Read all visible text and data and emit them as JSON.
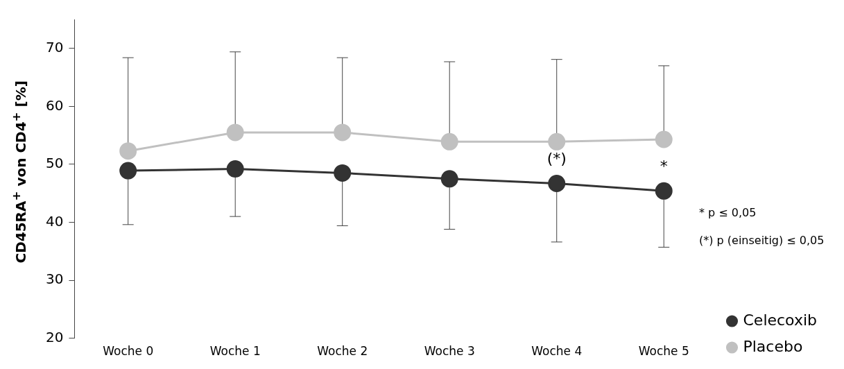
{
  "chart_data": {
    "type": "line",
    "ylabel": "CD45RA$^{+}$ von CD4$^{+}$ [%]",
    "categories": [
      "Woche 0",
      "Woche 1",
      "Woche 2",
      "Woche 3",
      "Woche 4",
      "Woche 5"
    ],
    "series": [
      {
        "name": "Celecoxib",
        "color": "#333333",
        "values": [
          48.9,
          49.2,
          48.5,
          47.5,
          46.7,
          45.4
        ],
        "errors": [
          [
            39.6,
            48.9
          ],
          [
            41,
            49.2
          ],
          [
            39.4,
            48.5
          ],
          [
            38.8,
            47.5
          ],
          [
            36.6,
            46.7
          ],
          [
            35.7,
            45.4
          ]
        ]
      },
      {
        "name": "Placebo",
        "color": "#c0c0c0",
        "values": [
          52.3,
          55.5,
          55.5,
          53.9,
          53.9,
          54.3
        ],
        "errors": [
          [
            52.3,
            68.4
          ],
          [
            55.5,
            69.4
          ],
          [
            55.5,
            68.4
          ],
          [
            53.9,
            67.7
          ],
          [
            53.9,
            68.1
          ],
          [
            54.3,
            67
          ]
        ]
      }
    ],
    "ylim": [
      20,
      75
    ],
    "yticks": [
      20,
      30,
      40,
      50,
      60,
      70
    ],
    "grid": false,
    "legend": "bottom right",
    "marker": "circle",
    "line_style": "solid",
    "annotations": [
      {
        "text": "(*)",
        "x": "Woche 4",
        "y": 46.7
      },
      {
        "text": "*",
        "x": "Woche 5",
        "y": 45.4
      },
      "* p ≤ 0,05",
      "(*) p (einseitig) ≤ 0,05"
    ]
  }
}
